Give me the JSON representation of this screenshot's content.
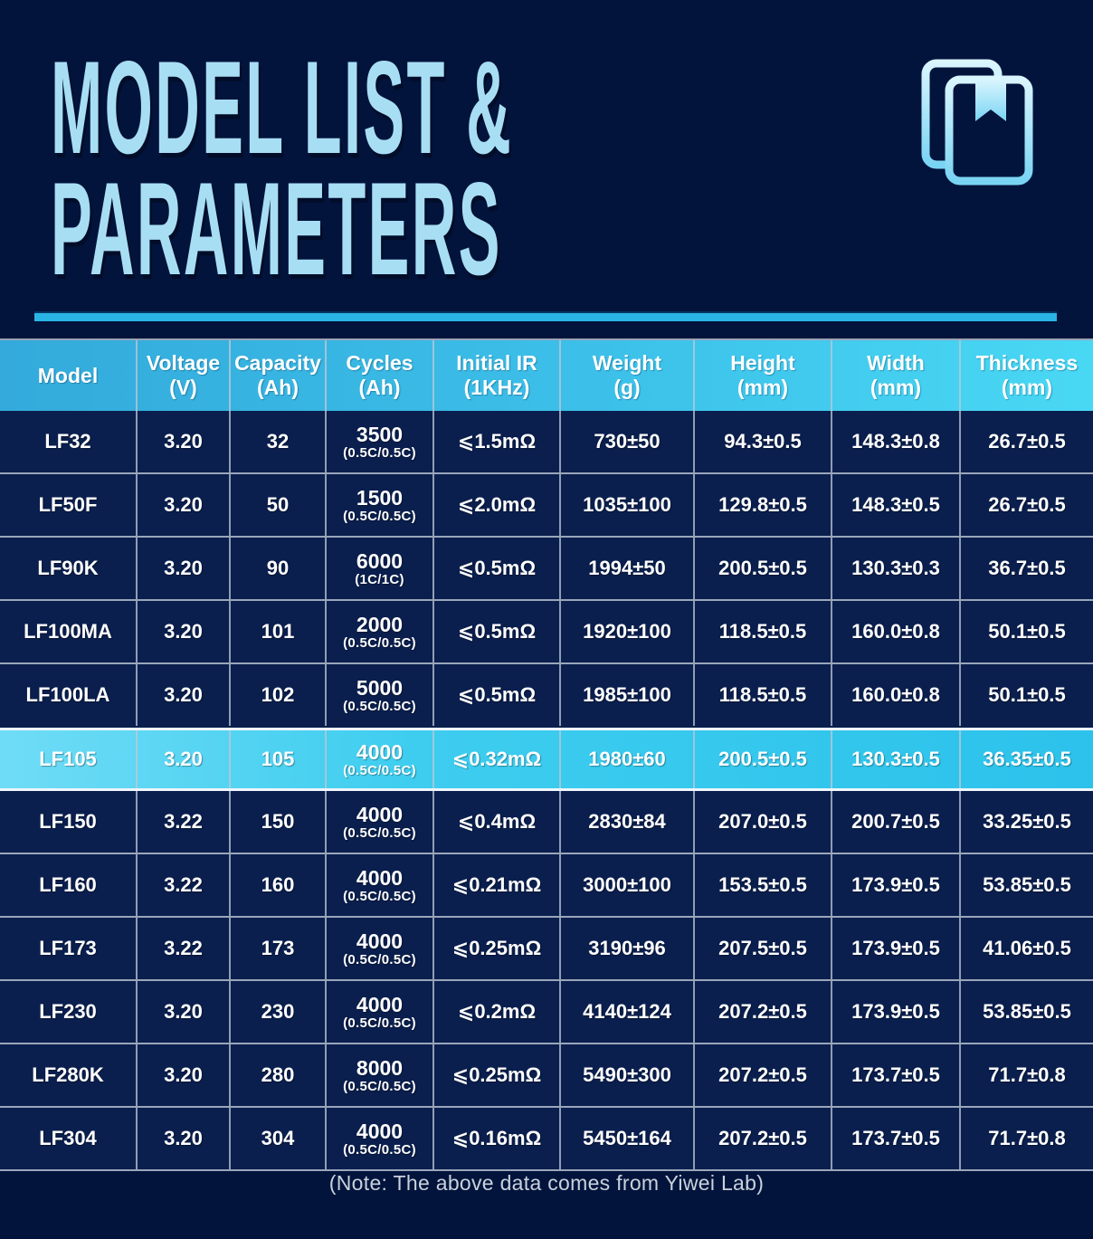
{
  "page": {
    "title_line1": "MODEL LIST &",
    "title_line2": "PARAMETERS",
    "note": "(Note: The above data comes from Yiwei Lab)",
    "icon": "documents-icon"
  },
  "colors": {
    "background": "#02143c",
    "row_background": "#0a1f4e",
    "header_gradient_start": "#33aadb",
    "header_gradient_end": "#49d8f4",
    "highlight_gradient_start": "#6fdcf6",
    "highlight_gradient_end": "#2cc2eb",
    "divider": "#2ab4e5",
    "title_text": "#a8def4",
    "grid_line": "#bec8d6"
  },
  "chart_data": {
    "type": "table",
    "title": "MODEL LIST & PARAMETERS",
    "highlighted_row": "LF105",
    "columns": [
      {
        "label": "Model",
        "unit": ""
      },
      {
        "label": "Voltage",
        "unit": "(V)"
      },
      {
        "label": "Capacity",
        "unit": "(Ah)"
      },
      {
        "label": "Cycles",
        "unit": "(Ah)"
      },
      {
        "label": "Initial IR",
        "unit": "(1KHz)"
      },
      {
        "label": "Weight",
        "unit": "(g)"
      },
      {
        "label": "Height",
        "unit": "(mm)"
      },
      {
        "label": "Width",
        "unit": "(mm)"
      },
      {
        "label": "Thickness",
        "unit": "(mm)"
      }
    ],
    "rows": [
      {
        "model": "LF32",
        "voltage": "3.20",
        "capacity": "32",
        "cycles": "3500",
        "cycles_rate": "(0.5C/0.5C)",
        "initial_ir": "⩽1.5mΩ",
        "weight": "730±50",
        "height": "94.3±0.5",
        "width": "148.3±0.8",
        "thickness": "26.7±0.5",
        "highlighted": false
      },
      {
        "model": "LF50F",
        "voltage": "3.20",
        "capacity": "50",
        "cycles": "1500",
        "cycles_rate": "(0.5C/0.5C)",
        "initial_ir": "⩽2.0mΩ",
        "weight": "1035±100",
        "height": "129.8±0.5",
        "width": "148.3±0.5",
        "thickness": "26.7±0.5",
        "highlighted": false
      },
      {
        "model": "LF90K",
        "voltage": "3.20",
        "capacity": "90",
        "cycles": "6000",
        "cycles_rate": "(1C/1C)",
        "initial_ir": "⩽0.5mΩ",
        "weight": "1994±50",
        "height": "200.5±0.5",
        "width": "130.3±0.3",
        "thickness": "36.7±0.5",
        "highlighted": false
      },
      {
        "model": "LF100MA",
        "voltage": "3.20",
        "capacity": "101",
        "cycles": "2000",
        "cycles_rate": "(0.5C/0.5C)",
        "initial_ir": "⩽0.5mΩ",
        "weight": "1920±100",
        "height": "118.5±0.5",
        "width": "160.0±0.8",
        "thickness": "50.1±0.5",
        "highlighted": false
      },
      {
        "model": "LF100LA",
        "voltage": "3.20",
        "capacity": "102",
        "cycles": "5000",
        "cycles_rate": "(0.5C/0.5C)",
        "initial_ir": "⩽0.5mΩ",
        "weight": "1985±100",
        "height": "118.5±0.5",
        "width": "160.0±0.8",
        "thickness": "50.1±0.5",
        "highlighted": false
      },
      {
        "model": "LF105",
        "voltage": "3.20",
        "capacity": "105",
        "cycles": "4000",
        "cycles_rate": "(0.5C/0.5C)",
        "initial_ir": "⩽0.32mΩ",
        "weight": "1980±60",
        "height": "200.5±0.5",
        "width": "130.3±0.5",
        "thickness": "36.35±0.5",
        "highlighted": true
      },
      {
        "model": "LF150",
        "voltage": "3.22",
        "capacity": "150",
        "cycles": "4000",
        "cycles_rate": "(0.5C/0.5C)",
        "initial_ir": "⩽0.4mΩ",
        "weight": "2830±84",
        "height": "207.0±0.5",
        "width": "200.7±0.5",
        "thickness": "33.25±0.5",
        "highlighted": false
      },
      {
        "model": "LF160",
        "voltage": "3.22",
        "capacity": "160",
        "cycles": "4000",
        "cycles_rate": "(0.5C/0.5C)",
        "initial_ir": "⩽0.21mΩ",
        "weight": "3000±100",
        "height": "153.5±0.5",
        "width": "173.9±0.5",
        "thickness": "53.85±0.5",
        "highlighted": false
      },
      {
        "model": "LF173",
        "voltage": "3.22",
        "capacity": "173",
        "cycles": "4000",
        "cycles_rate": "(0.5C/0.5C)",
        "initial_ir": "⩽0.25mΩ",
        "weight": "3190±96",
        "height": "207.5±0.5",
        "width": "173.9±0.5",
        "thickness": "41.06±0.5",
        "highlighted": false
      },
      {
        "model": "LF230",
        "voltage": "3.20",
        "capacity": "230",
        "cycles": "4000",
        "cycles_rate": "(0.5C/0.5C)",
        "initial_ir": "⩽0.2mΩ",
        "weight": "4140±124",
        "height": "207.2±0.5",
        "width": "173.9±0.5",
        "thickness": "53.85±0.5",
        "highlighted": false
      },
      {
        "model": "LF280K",
        "voltage": "3.20",
        "capacity": "280",
        "cycles": "8000",
        "cycles_rate": "(0.5C/0.5C)",
        "initial_ir": "⩽0.25mΩ",
        "weight": "5490±300",
        "height": "207.2±0.5",
        "width": "173.7±0.5",
        "thickness": "71.7±0.8",
        "highlighted": false
      },
      {
        "model": "LF304",
        "voltage": "3.20",
        "capacity": "304",
        "cycles": "4000",
        "cycles_rate": "(0.5C/0.5C)",
        "initial_ir": "⩽0.16mΩ",
        "weight": "5450±164",
        "height": "207.2±0.5",
        "width": "173.7±0.5",
        "thickness": "71.7±0.8",
        "highlighted": false
      }
    ]
  }
}
